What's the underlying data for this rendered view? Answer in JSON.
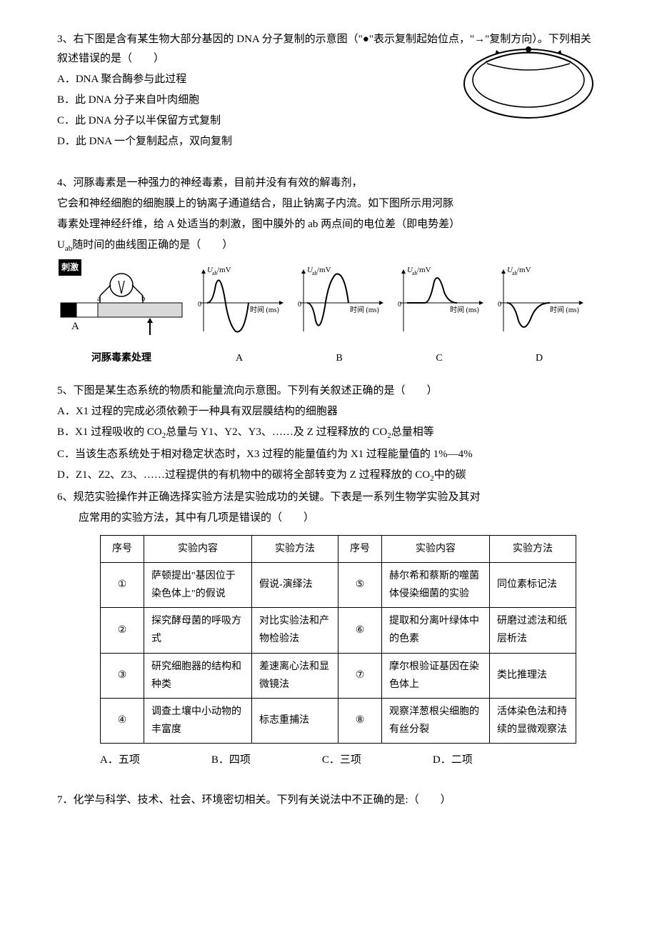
{
  "q3": {
    "stem": "3、右下图是含有某生物大部分基因的 DNA 分子复制的示意图（\"●\"表示复制起始位点，\"→\"复制方向）。下列相关叙述错误的是（　　）",
    "opts": {
      "A": "A．DNA 聚合酶参与此过程",
      "B": "B．此 DNA 分子来自叶肉细胞",
      "C": "C．此 DNA 分子以半保留方式复制",
      "D": "D．此 DNA 一个复制起点，双向复制"
    },
    "diagram": {
      "outer_stroke": "#000",
      "inner_stroke": "#000",
      "dot_fill": "#000"
    }
  },
  "q4": {
    "stem": "4、河豚毒素是一种强力的神经毒素，目前并没有有效的解毒剂，",
    "lines": [
      "它会和神经细胞的细胞膜上的钠离子通道结合，阻止钠离子内流。如下图所示用河豚",
      "毒素处理神经纤维，给 A 处适当的刺激，图中膜外的 ab 两点间的电位差（即电势差）",
      "Uab随时间的曲线图正确的是（　　）"
    ],
    "stimulus_label": "刺激",
    "toxin_label": "河豚毒素处理",
    "axis_label_a": "A",
    "y_label": "Uab/mV",
    "x_label": "时间 (ms)",
    "opts": {
      "A": "A",
      "B": "B",
      "C": "C",
      "D": "D"
    },
    "curves": {
      "A": {
        "type": "biphasic_pos_first"
      },
      "B": {
        "type": "biphasic_neg_first"
      },
      "C": {
        "type": "flat_then_pos"
      },
      "D": {
        "type": "neg_only"
      }
    },
    "colors": {
      "axis": "#000",
      "curve": "#000",
      "fiber_fill": "#d9d9d9",
      "fiber_dark": "#595959",
      "fiber_black": "#000"
    }
  },
  "q5": {
    "stem": "5、下图是某生态系统的物质和能量流向示意图。下列有关叙述正确的是（　　）",
    "opts": {
      "A": "A．X1 过程的完成必须依赖于一种具有双层膜结构的细胞器",
      "B": "B．X1 过程吸收的 CO2总量与 Y1、Y2、Y3、……及 Z 过程释放的 CO2总量相等",
      "C": "C．当该生态系统处于相对稳定状态时，X3 过程的能量值约为 X1 过程能量值的 1%—4%",
      "D": "D．Z1、Z2、Z3、……过程提供的有机物中的碳将全部转变为 Z 过程释放的 CO2中的碳"
    }
  },
  "q6": {
    "stem": "6、规范实验操作并正确选择实验方法是实验成功的关键。下表是一系列生物学实验及其对",
    "stem2": "应常用的实验方法，其中有几项是错误的（　　）",
    "headers": [
      "序号",
      "实验内容",
      "实验方法",
      "序号",
      "实验内容",
      "实验方法"
    ],
    "rows": [
      [
        "①",
        "萨顿提出\"基因位于染色体上\"的假说",
        "假说-演绎法",
        "⑤",
        "赫尔希和蔡斯的噬菌体侵染细菌的实验",
        "同位素标记法"
      ],
      [
        "②",
        "探究酵母菌的呼吸方式",
        "对比实验法和产物检验法",
        "⑥",
        "提取和分离叶绿体中的色素",
        "研磨过滤法和纸层析法"
      ],
      [
        "③",
        "研究细胞器的结构和种类",
        "差速离心法和显微镜法",
        "⑦",
        "摩尔根验证基因在染色体上",
        "类比推理法"
      ],
      [
        "④",
        "调查土壤中小动物的丰富度",
        "标志重捕法",
        "⑧",
        "观察洋葱根尖细胞的有丝分裂",
        "活体染色法和持续的显微观察法"
      ]
    ],
    "opts": {
      "A": "A．五项",
      "B": "B．四项",
      "C": "C．三项",
      "D": "D．二项"
    }
  },
  "q7": {
    "stem": "7．化学与科学、技术、社会、环境密切相关。下列有关说法中不正确的是:（　　）"
  }
}
